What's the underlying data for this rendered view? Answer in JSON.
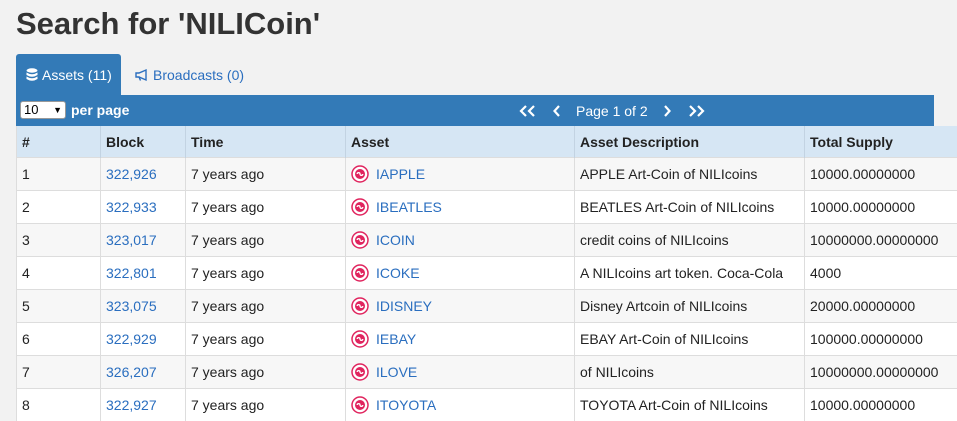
{
  "page": {
    "title": "Search for 'NILICoin'"
  },
  "tabs": [
    {
      "label": "Assets (11)",
      "icon": "database-icon",
      "active": true
    },
    {
      "label": "Broadcasts (0)",
      "icon": "bullhorn-icon",
      "active": false
    }
  ],
  "toolbar": {
    "per_page_value": "10",
    "per_page_label": "per page",
    "first_label": "<<",
    "prev_label": "<",
    "page_text": "Page 1 of 2",
    "next_label": ">",
    "last_label": ">>"
  },
  "table": {
    "columns": [
      "#",
      "Block",
      "Time",
      "Asset",
      "Asset Description",
      "Total Supply"
    ],
    "rows": [
      {
        "num": "1",
        "block": "322,926",
        "time": "7 years ago",
        "asset": "IAPPLE",
        "description": "APPLE Art-Coin of NILIcoins",
        "supply": "10000.00000000"
      },
      {
        "num": "2",
        "block": "322,933",
        "time": "7 years ago",
        "asset": "IBEATLES",
        "description": "BEATLES Art-Coin of NILIcoins",
        "supply": "10000.00000000"
      },
      {
        "num": "3",
        "block": "323,017",
        "time": "7 years ago",
        "asset": "ICOIN",
        "description": "credit coins of NILIcoins",
        "supply": "10000000.00000000"
      },
      {
        "num": "4",
        "block": "322,801",
        "time": "7 years ago",
        "asset": "ICOKE",
        "description": "A NILIcoins art token. Coca-Cola",
        "supply": "4000"
      },
      {
        "num": "5",
        "block": "323,075",
        "time": "7 years ago",
        "asset": "IDISNEY",
        "description": "Disney Artcoin of NILIcoins",
        "supply": "20000.00000000"
      },
      {
        "num": "6",
        "block": "322,929",
        "time": "7 years ago",
        "asset": "IEBAY",
        "description": "EBAY Art-Coin of NILIcoins",
        "supply": "100000.00000000"
      },
      {
        "num": "7",
        "block": "326,207",
        "time": "7 years ago",
        "asset": "ILOVE",
        "description": "of NILIcoins",
        "supply": "10000000.00000000"
      },
      {
        "num": "8",
        "block": "322,927",
        "time": "7 years ago",
        "asset": "ITOYOTA",
        "description": "TOYOTA Art-Coin of NILIcoins",
        "supply": "10000.00000000"
      }
    ]
  },
  "colors": {
    "accent": "#337ab7",
    "link": "#2a6ebf",
    "header_bg": "#d6e6f4",
    "asset_icon": "#e0245e"
  }
}
